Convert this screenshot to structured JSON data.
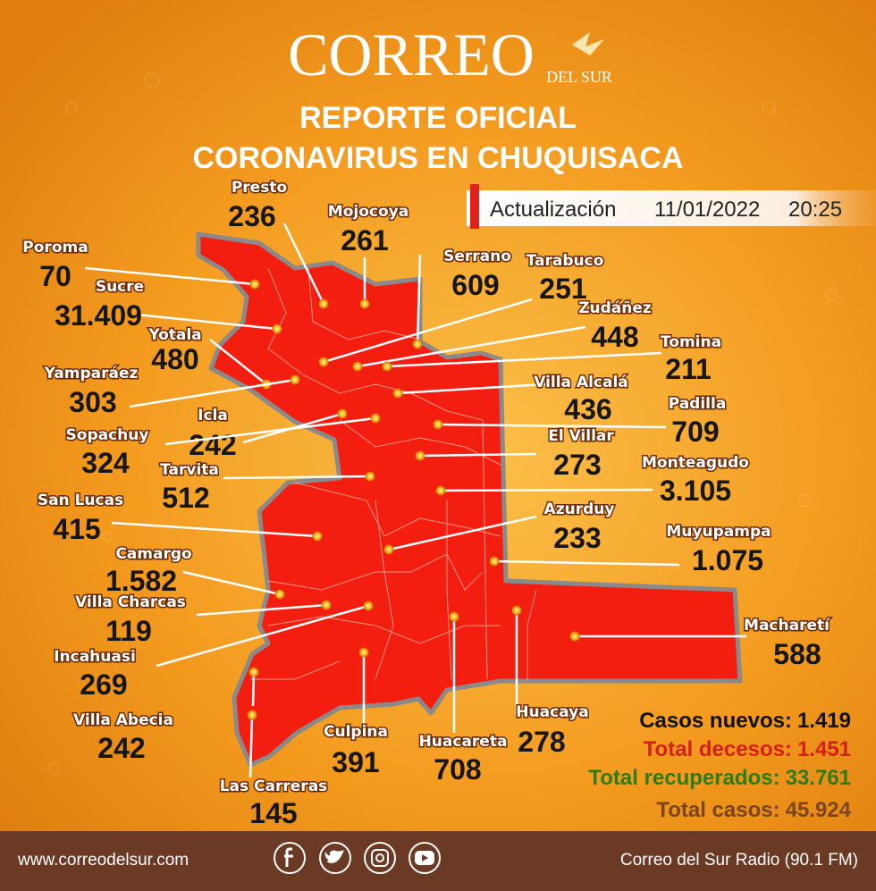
{
  "header": {
    "logo": "CORREO",
    "logo_sub": "DEL SUR",
    "title": "REPORTE OFICIAL",
    "subtitle": "CORONAVIRUS EN CHUQUISACA"
  },
  "update": {
    "label": "Actualización",
    "date": "11/01/2022",
    "time": "20:25"
  },
  "municipalities": [
    {
      "name": "Presto",
      "cases": "236"
    },
    {
      "name": "Mojocoya",
      "cases": "261"
    },
    {
      "name": "Poroma",
      "cases": "70"
    },
    {
      "name": "Serrano",
      "cases": "609"
    },
    {
      "name": "Tarabuco",
      "cases": "251"
    },
    {
      "name": "Sucre",
      "cases": "31.409"
    },
    {
      "name": "Zudáñez",
      "cases": "448"
    },
    {
      "name": "Yotala",
      "cases": "480"
    },
    {
      "name": "Tomina",
      "cases": "211"
    },
    {
      "name": "Yamparáez",
      "cases": "303"
    },
    {
      "name": "Villa Alcalá",
      "cases": "436"
    },
    {
      "name": "Padilla",
      "cases": "709"
    },
    {
      "name": "Icla",
      "cases": "242"
    },
    {
      "name": "El Villar",
      "cases": "273"
    },
    {
      "name": "Sopachuy",
      "cases": "324"
    },
    {
      "name": "Monteagudo",
      "cases": "3.105"
    },
    {
      "name": "Tarvita",
      "cases": "512"
    },
    {
      "name": "San Lucas",
      "cases": "415"
    },
    {
      "name": "Azurduy",
      "cases": "233"
    },
    {
      "name": "Muyupampa",
      "cases": "1.075"
    },
    {
      "name": "Camargo",
      "cases": "1.582"
    },
    {
      "name": "Villa Charcas",
      "cases": "119"
    },
    {
      "name": "Incahuasi",
      "cases": "269"
    },
    {
      "name": "Macharetí",
      "cases": "588"
    },
    {
      "name": "Villa Abecia",
      "cases": "242"
    },
    {
      "name": "Huacaya",
      "cases": "278"
    },
    {
      "name": "Culpina",
      "cases": "391"
    },
    {
      "name": "Huacareta",
      "cases": "708"
    },
    {
      "name": "Las Carreras",
      "cases": "145"
    }
  ],
  "summary": [
    {
      "label": "Casos nuevos:",
      "value": "1.419"
    },
    {
      "label": "Total decesos:",
      "value": "1.451"
    },
    {
      "label": "Total recuperados:",
      "value": "33.761"
    },
    {
      "label": "Total casos:",
      "value": "45.924"
    }
  ],
  "footer": {
    "website": "www.correodelsur.com",
    "radio": "Correo del Sur Radio (90.1 FM)"
  }
}
